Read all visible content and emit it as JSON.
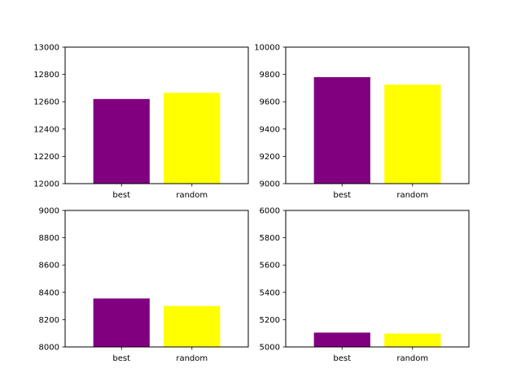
{
  "chart_data": [
    {
      "type": "bar",
      "categories": [
        "best",
        "random"
      ],
      "values": [
        12620,
        12665
      ],
      "colors": [
        "#800080",
        "#ffff00"
      ],
      "ylim": [
        12000,
        13000
      ],
      "yticks": [
        "12000",
        "12200",
        "12400",
        "12600",
        "12800",
        "13000"
      ],
      "title": "",
      "xlabel": "",
      "ylabel": ""
    },
    {
      "type": "bar",
      "categories": [
        "best",
        "random"
      ],
      "values": [
        9780,
        9725
      ],
      "colors": [
        "#800080",
        "#ffff00"
      ],
      "ylim": [
        9000,
        10000
      ],
      "yticks": [
        "9000",
        "9200",
        "9400",
        "9600",
        "9800",
        "10000"
      ],
      "title": "",
      "xlabel": "",
      "ylabel": ""
    },
    {
      "type": "bar",
      "categories": [
        "best",
        "random"
      ],
      "values": [
        8355,
        8300
      ],
      "colors": [
        "#800080",
        "#ffff00"
      ],
      "ylim": [
        8000,
        9000
      ],
      "yticks": [
        "8000",
        "8200",
        "8400",
        "8600",
        "8800",
        "9000"
      ],
      "title": "",
      "xlabel": "",
      "ylabel": ""
    },
    {
      "type": "bar",
      "categories": [
        "best",
        "random"
      ],
      "values": [
        5105,
        5098
      ],
      "colors": [
        "#800080",
        "#ffff00"
      ],
      "ylim": [
        5000,
        6000
      ],
      "yticks": [
        "5000",
        "5200",
        "5400",
        "5600",
        "5800",
        "6000"
      ],
      "title": "",
      "xlabel": "",
      "ylabel": ""
    }
  ]
}
